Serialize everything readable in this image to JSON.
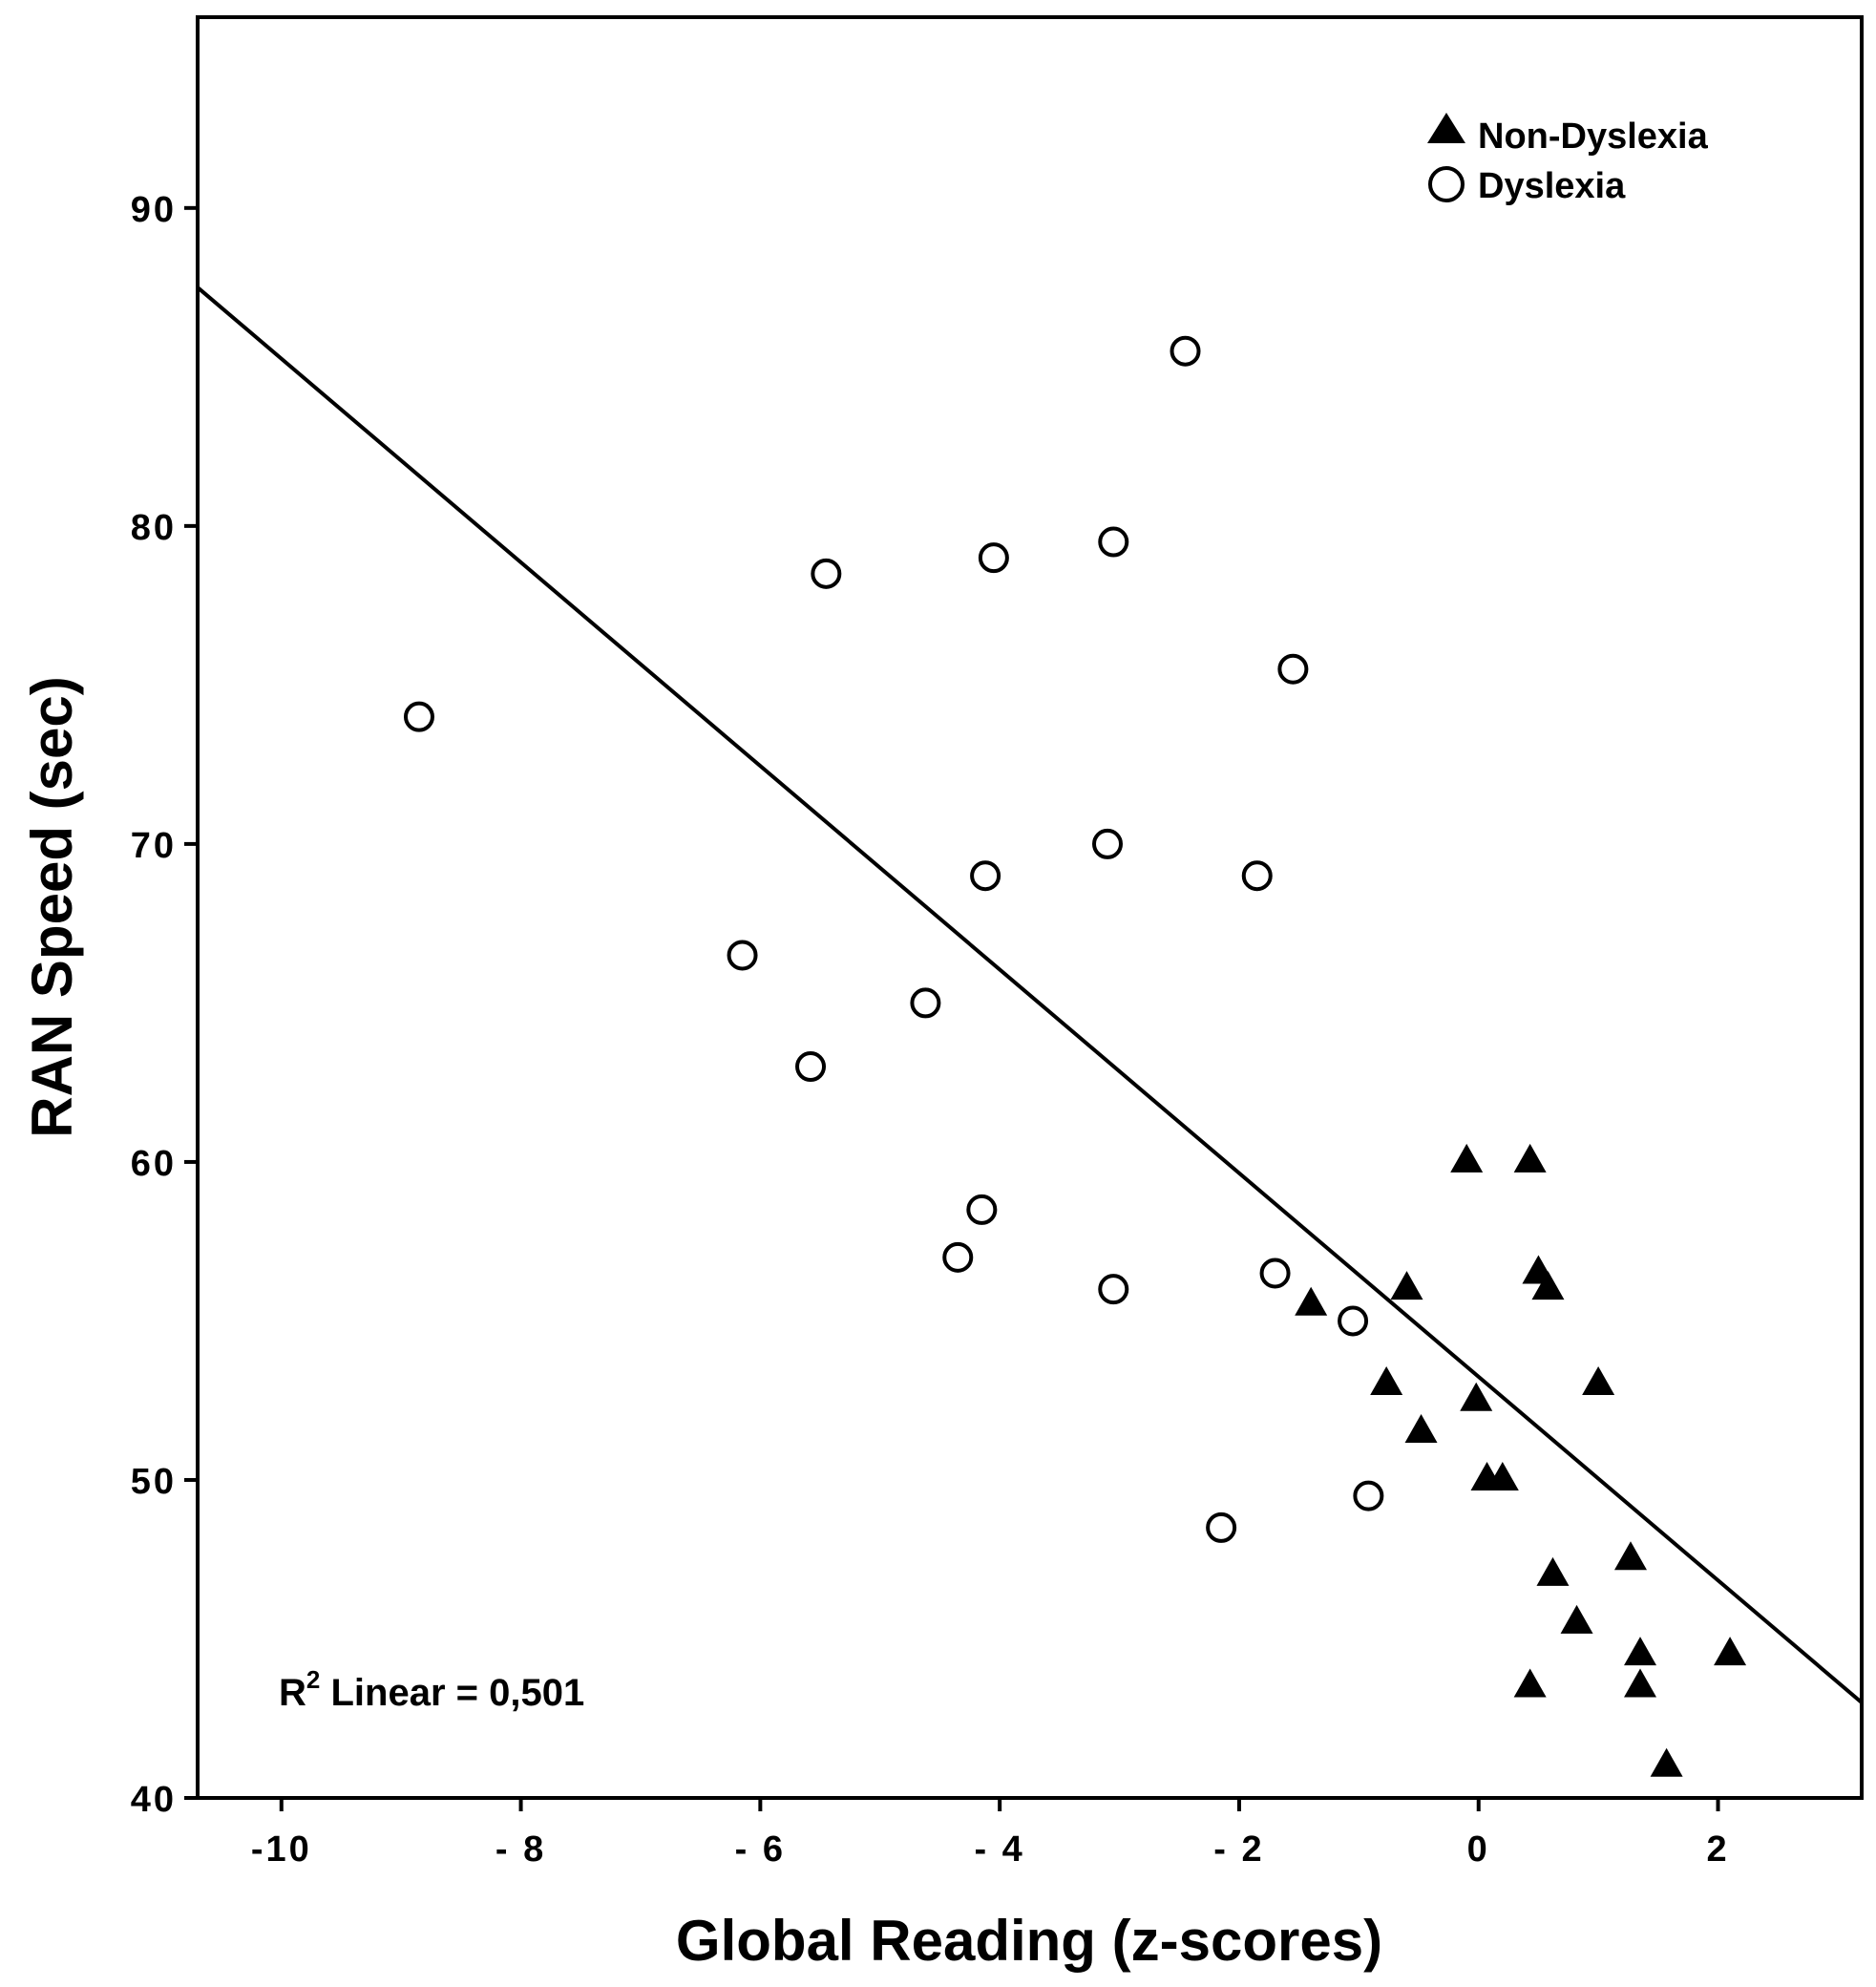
{
  "chart_data": {
    "type": "scatter",
    "xlabel": "Global Reading (z-scores)",
    "ylabel": "RAN Speed (sec)",
    "xlim": [
      -10.7,
      3.2
    ],
    "ylim": [
      40,
      96
    ],
    "x_ticks": [
      -10,
      -8,
      -6,
      -4,
      -2,
      0,
      2
    ],
    "x_tick_labels": [
      "-10",
      "- 8",
      "- 6",
      "- 4",
      "- 2",
      "0",
      "2"
    ],
    "y_ticks": [
      40,
      50,
      60,
      70,
      80,
      90
    ],
    "y_tick_labels": [
      "40",
      "50",
      "60",
      "70",
      "80",
      "90"
    ],
    "legend_position": "top-right",
    "annotation": {
      "prefix": "R",
      "superscript": "2",
      "text": " Linear = 0,501"
    },
    "fit_line": {
      "label": "R2 Linear = 0,501",
      "x": [
        -10.7,
        3.2
      ],
      "y": [
        87.5,
        43.0
      ]
    },
    "series": [
      {
        "name": "Non-Dyslexia",
        "marker": "triangle",
        "color": "#000000",
        "points": [
          {
            "x": -0.1,
            "y": 60.0
          },
          {
            "x": 0.43,
            "y": 60.0
          },
          {
            "x": 0.5,
            "y": 56.5
          },
          {
            "x": 0.58,
            "y": 56.0
          },
          {
            "x": -0.6,
            "y": 56.0
          },
          {
            "x": -1.4,
            "y": 55.5
          },
          {
            "x": -0.77,
            "y": 53.0
          },
          {
            "x": 1.0,
            "y": 53.0
          },
          {
            "x": -0.02,
            "y": 52.5
          },
          {
            "x": -0.48,
            "y": 51.5
          },
          {
            "x": 0.07,
            "y": 50.0
          },
          {
            "x": 0.2,
            "y": 50.0
          },
          {
            "x": 1.27,
            "y": 47.5
          },
          {
            "x": 0.62,
            "y": 47.0
          },
          {
            "x": 0.82,
            "y": 45.5
          },
          {
            "x": 1.35,
            "y": 44.5
          },
          {
            "x": 2.1,
            "y": 44.5
          },
          {
            "x": 0.43,
            "y": 43.5
          },
          {
            "x": 1.35,
            "y": 43.5
          },
          {
            "x": 1.57,
            "y": 41.0
          }
        ]
      },
      {
        "name": "Dyslexia",
        "marker": "circle",
        "color": "#000000",
        "points": [
          {
            "x": -2.45,
            "y": 85.5
          },
          {
            "x": -3.05,
            "y": 79.5
          },
          {
            "x": -4.05,
            "y": 79.0
          },
          {
            "x": -5.45,
            "y": 78.5
          },
          {
            "x": -1.55,
            "y": 75.5
          },
          {
            "x": -8.85,
            "y": 74.0
          },
          {
            "x": -3.1,
            "y": 70.0
          },
          {
            "x": -4.12,
            "y": 69.0
          },
          {
            "x": -1.85,
            "y": 69.0
          },
          {
            "x": -6.15,
            "y": 66.5
          },
          {
            "x": -4.62,
            "y": 65.0
          },
          {
            "x": -5.58,
            "y": 63.0
          },
          {
            "x": -4.15,
            "y": 58.5
          },
          {
            "x": -4.35,
            "y": 57.0
          },
          {
            "x": -1.7,
            "y": 56.5
          },
          {
            "x": -3.05,
            "y": 56.0
          },
          {
            "x": -1.05,
            "y": 55.0
          },
          {
            "x": -0.92,
            "y": 49.5
          },
          {
            "x": -2.15,
            "y": 48.5
          }
        ]
      }
    ]
  }
}
